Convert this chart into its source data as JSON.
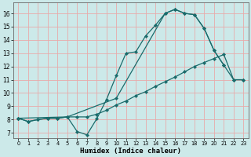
{
  "xlabel": "Humidex (Indice chaleur)",
  "bg_color": "#cce9e9",
  "grid_color": "#e8aaaa",
  "line_color": "#1a6b6b",
  "xlim": [
    -0.5,
    23.5
  ],
  "ylim": [
    6.6,
    16.8
  ],
  "xticks": [
    0,
    1,
    2,
    3,
    4,
    5,
    6,
    7,
    8,
    9,
    10,
    11,
    12,
    13,
    14,
    15,
    16,
    17,
    18,
    19,
    20,
    21,
    22,
    23
  ],
  "yticks": [
    7,
    8,
    9,
    10,
    11,
    12,
    13,
    14,
    15,
    16
  ],
  "line1_x": [
    0,
    1,
    2,
    3,
    4,
    5,
    6,
    7,
    8,
    9,
    10,
    11,
    12,
    13,
    14,
    15,
    16,
    17,
    18,
    19,
    20,
    21
  ],
  "line1_y": [
    8.1,
    7.85,
    8.0,
    8.1,
    8.1,
    8.2,
    7.1,
    6.85,
    8.05,
    9.5,
    11.3,
    13.0,
    13.1,
    14.3,
    15.1,
    16.0,
    16.3,
    16.0,
    15.9,
    14.85,
    13.2,
    12.1
  ],
  "line2_x": [
    0,
    1,
    2,
    3,
    4,
    5,
    6,
    7,
    8,
    9,
    10,
    11,
    12,
    13,
    14,
    15,
    16,
    17,
    18,
    19,
    20,
    21,
    22,
    23
  ],
  "line2_y": [
    8.1,
    7.85,
    8.0,
    8.1,
    8.1,
    8.2,
    8.2,
    8.2,
    8.4,
    8.7,
    9.1,
    9.4,
    9.8,
    10.1,
    10.5,
    10.85,
    11.2,
    11.6,
    12.0,
    12.3,
    12.6,
    12.9,
    11.0,
    11.0
  ],
  "line3_x": [
    0,
    5,
    10,
    15,
    16,
    17,
    18,
    19,
    20,
    21,
    22,
    23
  ],
  "line3_y": [
    8.1,
    8.2,
    9.6,
    16.0,
    16.3,
    16.0,
    15.9,
    14.85,
    13.2,
    12.1,
    11.0,
    11.0
  ]
}
